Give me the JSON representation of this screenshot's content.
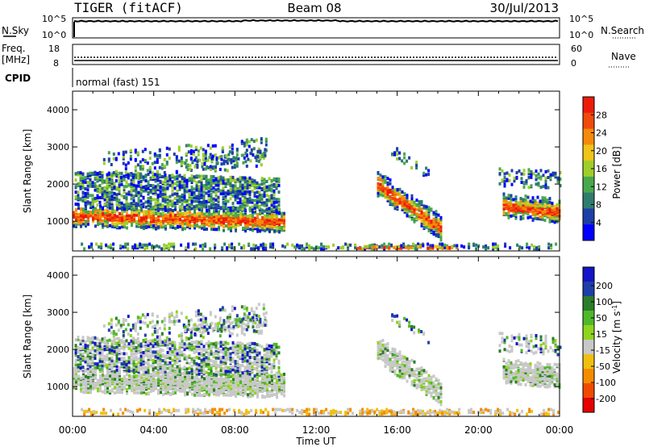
{
  "header": {
    "radar": "TIGER (fitACF)",
    "beam": "Beam 08",
    "date": "30/Jul/2013"
  },
  "status_panels": {
    "nsky_label": "N.Sky",
    "nsky_ticks": [
      "10^5",
      "10^0"
    ],
    "nsearch_label": "N.Search",
    "nsearch_ticks": [
      "10^5",
      "10^0"
    ],
    "freq_label": "Freq.",
    "freq_unit": "[MHz]",
    "freq_ticks": [
      "18",
      "8"
    ],
    "nave_label": "Nave",
    "nave_ticks": [
      "60",
      "0"
    ],
    "cpid_label": "CPID",
    "cpid_value": "normal (fast) 151"
  },
  "colors": {
    "power_scale": [
      "#0000ff",
      "#1e3fa8",
      "#2f7d6e",
      "#4aa84c",
      "#9fce2a",
      "#f0c419",
      "#f58a0b",
      "#f04a0c",
      "#ee1b0b"
    ],
    "velocity_scale": [
      "#e60000",
      "#f04a00",
      "#f58c00",
      "#f0c010",
      "#c8c8c8",
      "#8fd41e",
      "#4fb82a",
      "#2a7d2a",
      "#1e3fa8",
      "#1414c8"
    ]
  },
  "chart_data": [
    {
      "type": "heatmap",
      "name": "power",
      "ylabel": "Slant Range [km]",
      "yticks": [
        "1000",
        "2000",
        "3000",
        "4000"
      ],
      "ylim": [
        200,
        4500
      ],
      "xlim": [
        "00:00",
        "24:00"
      ],
      "xticks": [
        "00:00",
        "04:00",
        "08:00",
        "12:00",
        "16:00",
        "20:00",
        "00:00"
      ],
      "colorbar_label": "Power [dB]",
      "colorbar_ticks": [
        "4",
        "8",
        "12",
        "16",
        "20",
        "24",
        "28"
      ],
      "colorbar_range": [
        0,
        32
      ]
    },
    {
      "type": "heatmap",
      "name": "velocity",
      "ylabel": "Slant Range [km]",
      "yticks": [
        "1000",
        "2000",
        "3000",
        "4000"
      ],
      "ylim": [
        200,
        4500
      ],
      "xlim": [
        "00:00",
        "24:00"
      ],
      "xticks": [
        "00:00",
        "04:00",
        "08:00",
        "12:00",
        "16:00",
        "20:00",
        "00:00"
      ],
      "xlabel": "Time UT",
      "colorbar_label": "Velocity [m s",
      "colorbar_label_sup": "-1",
      "colorbar_label_end": "]",
      "colorbar_ticks": [
        "200",
        "100",
        "50",
        "15",
        "-15",
        "-50",
        "-100",
        "-200"
      ]
    }
  ]
}
